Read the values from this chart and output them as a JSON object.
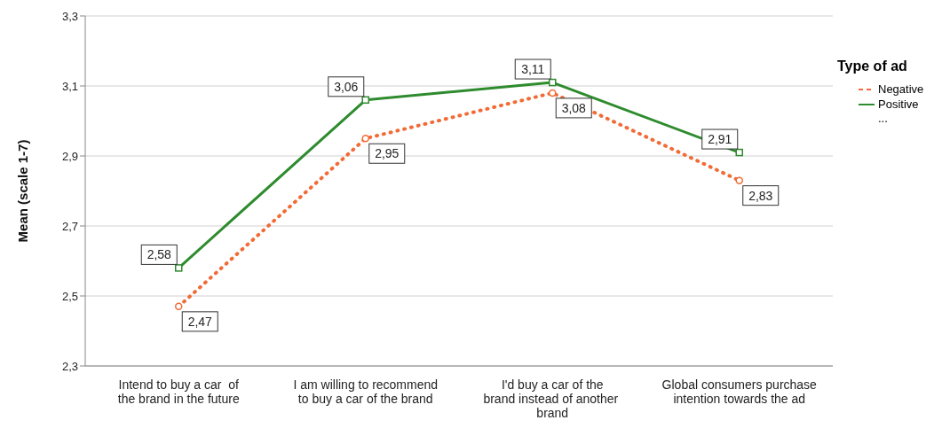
{
  "chart_data": {
    "type": "line",
    "ylabel": "Mean (scale 1-7)",
    "legend_title": "Type of ad",
    "legend": "top right",
    "grid": "y",
    "categories": [
      "Intend to buy a car  of the brand in the future",
      "I am willing to recommend to buy a car of the brand",
      "I'd buy a car of the brand instead of another  brand",
      "Global consumers purchase intention towards the ad"
    ],
    "ylim": [
      2.3,
      3.3
    ],
    "yticks": [
      {
        "value": 2.3,
        "label": "2,3"
      },
      {
        "value": 2.5,
        "label": "2,5"
      },
      {
        "value": 2.7,
        "label": "2,7"
      },
      {
        "value": 2.9,
        "label": "2,9"
      },
      {
        "value": 3.1,
        "label": "3,1"
      },
      {
        "value": 3.3,
        "label": "3,3"
      }
    ],
    "series": [
      {
        "name": "Negative",
        "color": "#f26b36",
        "line_style": "dotted",
        "marker": "circle",
        "values": [
          2.47,
          2.95,
          3.08,
          2.83
        ],
        "value_labels": [
          "2,47",
          "2,95",
          "3,08",
          "2,83"
        ]
      },
      {
        "name": "Positive",
        "color": "#2e8b2e",
        "line_style": "solid",
        "marker": "square",
        "values": [
          2.58,
          3.06,
          3.11,
          2.91
        ],
        "value_labels": [
          "2,58",
          "3,06",
          "3,11",
          "2,91"
        ]
      }
    ],
    "annotations": [
      "..."
    ]
  }
}
